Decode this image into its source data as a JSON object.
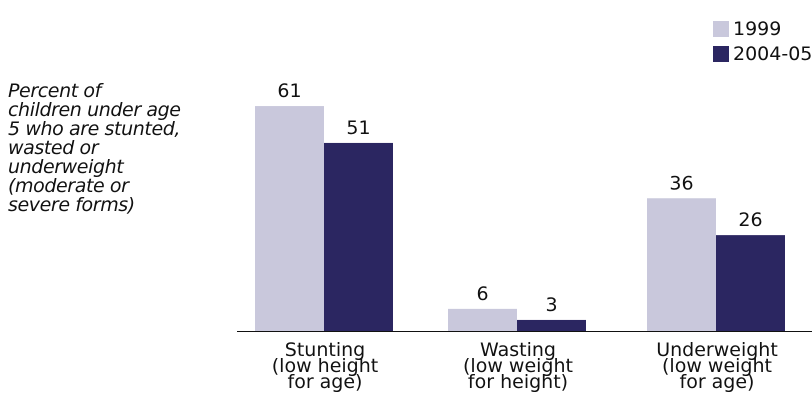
{
  "chart_data": {
    "type": "bar",
    "ylabel_lines": [
      "Percent of",
      "children under age",
      "5 who are stunted,",
      "wasted or",
      "underweight",
      "(moderate or",
      "severe forms)"
    ],
    "categories": [
      [
        "Stunting",
        "(low height",
        "for age)"
      ],
      [
        "Wasting",
        "(low weight",
        "for height)"
      ],
      [
        "Underweight",
        "(low weight",
        "for age)"
      ]
    ],
    "series": [
      {
        "name": "1999",
        "values": [
          61,
          6,
          36
        ],
        "color": "#c9c8dc"
      },
      {
        "name": "2004-05",
        "values": [
          51,
          3,
          26
        ],
        "color": "#2b2661"
      }
    ],
    "ylim": [
      0,
      64
    ],
    "grid": false,
    "legend_position": "top-right"
  }
}
